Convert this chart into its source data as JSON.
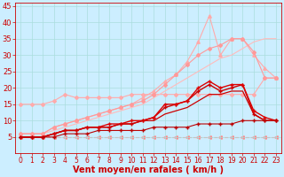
{
  "background_color": "#cceeff",
  "grid_color": "#aadddd",
  "xlabel": "Vent moyen/en rafales ( km/h )",
  "xlabel_color": "#cc0000",
  "xlabel_fontsize": 7,
  "xtick_fontsize": 5.5,
  "ytick_fontsize": 6,
  "xlim": [
    -0.5,
    23.5
  ],
  "ylim": [
    0,
    46
  ],
  "xticks": [
    0,
    1,
    2,
    3,
    4,
    5,
    6,
    7,
    8,
    9,
    10,
    11,
    12,
    13,
    14,
    15,
    16,
    17,
    18,
    19,
    20,
    21,
    22,
    23
  ],
  "yticks": [
    5,
    10,
    15,
    20,
    25,
    30,
    35,
    40,
    45
  ],
  "lines": [
    {
      "x": [
        0,
        1,
        2,
        3,
        4,
        5,
        6,
        7,
        8,
        9,
        10,
        11,
        12,
        13,
        14,
        15,
        16,
        17,
        18,
        19,
        20,
        21,
        22,
        23
      ],
      "y": [
        5,
        5,
        5,
        5,
        5,
        5,
        5,
        5,
        5,
        5,
        5,
        5,
        5,
        5,
        5,
        5,
        5,
        5,
        5,
        5,
        5,
        5,
        5,
        5
      ],
      "color": "#ff8888",
      "marker": "<",
      "markersize": 2.5,
      "linewidth": 0.8,
      "linestyle": "--",
      "zorder": 1
    },
    {
      "x": [
        0,
        1,
        2,
        3,
        4,
        5,
        6,
        7,
        8,
        9,
        10,
        11,
        12,
        13,
        14,
        15,
        16,
        17,
        18,
        19,
        20,
        21,
        22,
        23
      ],
      "y": [
        15,
        15,
        15,
        16,
        18,
        17,
        17,
        17,
        17,
        17,
        18,
        18,
        18,
        18,
        18,
        18,
        18,
        18,
        18,
        18,
        18,
        18,
        23,
        23
      ],
      "color": "#ffaaaa",
      "marker": "D",
      "markersize": 2,
      "linewidth": 0.8,
      "linestyle": "-",
      "zorder": 2
    },
    {
      "x": [
        0,
        1,
        2,
        3,
        4,
        5,
        6,
        7,
        8,
        9,
        10,
        11,
        12,
        13,
        14,
        15,
        16,
        17,
        18,
        19,
        20,
        21,
        22,
        23
      ],
      "y": [
        6,
        6,
        6,
        7,
        8,
        9,
        10,
        11,
        12,
        13,
        14,
        15,
        17,
        19,
        21,
        23,
        25,
        27,
        29,
        30,
        32,
        34,
        35,
        35
      ],
      "color": "#ffbbbb",
      "marker": null,
      "markersize": 0,
      "linewidth": 0.8,
      "linestyle": "-",
      "zorder": 3
    },
    {
      "x": [
        0,
        1,
        2,
        3,
        4,
        5,
        6,
        7,
        8,
        9,
        10,
        11,
        12,
        13,
        14,
        15,
        16,
        17,
        18,
        19,
        20,
        21,
        22,
        23
      ],
      "y": [
        6,
        6,
        6,
        8,
        9,
        10,
        11,
        12,
        13,
        14,
        15,
        17,
        19,
        22,
        24,
        28,
        34,
        42,
        30,
        35,
        35,
        30,
        26,
        23
      ],
      "color": "#ffaaaa",
      "marker": "^",
      "markersize": 2.5,
      "linewidth": 0.8,
      "linestyle": "-",
      "zorder": 4
    },
    {
      "x": [
        0,
        1,
        2,
        3,
        4,
        5,
        6,
        7,
        8,
        9,
        10,
        11,
        12,
        13,
        14,
        15,
        16,
        17,
        18,
        19,
        20,
        21,
        22,
        23
      ],
      "y": [
        6,
        6,
        6,
        8,
        9,
        10,
        11,
        12,
        13,
        14,
        15,
        16,
        18,
        21,
        24,
        27,
        30,
        32,
        33,
        35,
        35,
        31,
        23,
        23
      ],
      "color": "#ff9999",
      "marker": "D",
      "markersize": 2,
      "linewidth": 0.8,
      "linestyle": "-",
      "zorder": 5
    },
    {
      "x": [
        0,
        1,
        2,
        3,
        4,
        5,
        6,
        7,
        8,
        9,
        10,
        11,
        12,
        13,
        14,
        15,
        16,
        17,
        18,
        19,
        20,
        21,
        22,
        23
      ],
      "y": [
        5,
        5,
        5,
        6,
        7,
        7,
        8,
        8,
        8,
        9,
        9,
        10,
        11,
        14,
        15,
        16,
        19,
        21,
        19,
        20,
        21,
        12,
        10,
        10
      ],
      "color": "#cc0000",
      "marker": "+",
      "markersize": 3.5,
      "linewidth": 1.0,
      "linestyle": "-",
      "zorder": 6
    },
    {
      "x": [
        0,
        1,
        2,
        3,
        4,
        5,
        6,
        7,
        8,
        9,
        10,
        11,
        12,
        13,
        14,
        15,
        16,
        17,
        18,
        19,
        20,
        21,
        22,
        23
      ],
      "y": [
        5,
        5,
        5,
        6,
        7,
        7,
        8,
        8,
        9,
        9,
        10,
        10,
        11,
        15,
        15,
        16,
        20,
        22,
        20,
        21,
        21,
        13,
        11,
        10
      ],
      "color": "#dd0000",
      "marker": "+",
      "markersize": 3.5,
      "linewidth": 1.0,
      "linestyle": "-",
      "zorder": 7
    },
    {
      "x": [
        0,
        1,
        2,
        3,
        4,
        5,
        6,
        7,
        8,
        9,
        10,
        11,
        12,
        13,
        14,
        15,
        16,
        17,
        18,
        19,
        20,
        21,
        22,
        23
      ],
      "y": [
        5,
        5,
        5,
        6,
        7,
        7,
        8,
        8,
        8,
        9,
        9,
        10,
        10,
        12,
        13,
        14,
        16,
        18,
        18,
        19,
        19,
        12,
        10,
        10
      ],
      "color": "#cc0000",
      "marker": null,
      "markersize": 0,
      "linewidth": 0.9,
      "linestyle": "-",
      "zorder": 8
    },
    {
      "x": [
        0,
        1,
        2,
        3,
        4,
        5,
        6,
        7,
        8,
        9,
        10,
        11,
        12,
        13,
        14,
        15,
        16,
        17,
        18,
        19,
        20,
        21,
        22,
        23
      ],
      "y": [
        5,
        5,
        5,
        5,
        6,
        6,
        6,
        7,
        7,
        7,
        7,
        7,
        8,
        8,
        8,
        8,
        9,
        9,
        9,
        9,
        10,
        10,
        10,
        10
      ],
      "color": "#bb0000",
      "marker": "+",
      "markersize": 3,
      "linewidth": 0.8,
      "linestyle": "-",
      "zorder": 9
    }
  ]
}
